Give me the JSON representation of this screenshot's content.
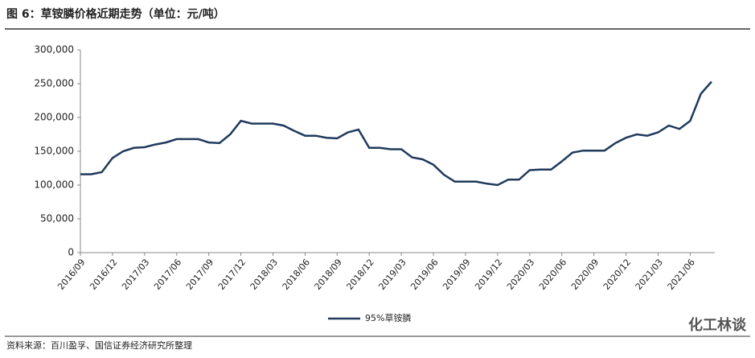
{
  "title": "图 6：草铵膦价格近期走势（单位：元/吨）",
  "source": "资料来源：百川盈孚、国信证券经济研究所整理",
  "watermark": "化工林谈",
  "chart_data": {
    "type": "line",
    "x": [
      "2016/09",
      "2016/10",
      "2016/11",
      "2016/12",
      "2017/01",
      "2017/02",
      "2017/03",
      "2017/04",
      "2017/05",
      "2017/06",
      "2017/07",
      "2017/08",
      "2017/09",
      "2017/10",
      "2017/11",
      "2017/12",
      "2018/01",
      "2018/02",
      "2018/03",
      "2018/04",
      "2018/05",
      "2018/06",
      "2018/07",
      "2018/08",
      "2018/09",
      "2018/10",
      "2018/11",
      "2018/12",
      "2019/01",
      "2019/02",
      "2019/03",
      "2019/04",
      "2019/05",
      "2019/06",
      "2019/07",
      "2019/08",
      "2019/09",
      "2019/10",
      "2019/11",
      "2019/12",
      "2020/01",
      "2020/02",
      "2020/03",
      "2020/04",
      "2020/05",
      "2020/06",
      "2020/07",
      "2020/08",
      "2020/09",
      "2020/10",
      "2020/11",
      "2020/12",
      "2021/01",
      "2021/02",
      "2021/03",
      "2021/04",
      "2021/05",
      "2021/06",
      "2021/07",
      "2021/08"
    ],
    "series": [
      {
        "name": "95%草铵膦",
        "color": "#1f3a5c",
        "values": [
          116000,
          116000,
          119000,
          140000,
          150000,
          155000,
          156000,
          160000,
          163000,
          168000,
          168000,
          168000,
          163000,
          162000,
          175000,
          195000,
          191000,
          191000,
          191000,
          188000,
          180000,
          173000,
          173000,
          170000,
          169000,
          178000,
          182000,
          155000,
          155000,
          153000,
          153000,
          141000,
          138000,
          130000,
          115000,
          105000,
          105000,
          105000,
          102000,
          100000,
          108000,
          108000,
          122000,
          123000,
          123000,
          135000,
          148000,
          151000,
          151000,
          151000,
          162000,
          170000,
          175000,
          173000,
          178000,
          188000,
          183000,
          195000,
          235000,
          253000
        ]
      }
    ],
    "ylim": [
      0,
      300000
    ],
    "yticks": [
      0,
      {
        "value": 50000,
        "label": "50,000"
      },
      {
        "value": 100000,
        "label": "100,000"
      },
      {
        "value": 150000,
        "label": "150,000"
      },
      {
        "value": 200000,
        "label": "200,000"
      },
      {
        "value": 250000,
        "label": "250,000"
      },
      {
        "value": 300000,
        "label": "300,000"
      }
    ],
    "legend": "bottom"
  }
}
